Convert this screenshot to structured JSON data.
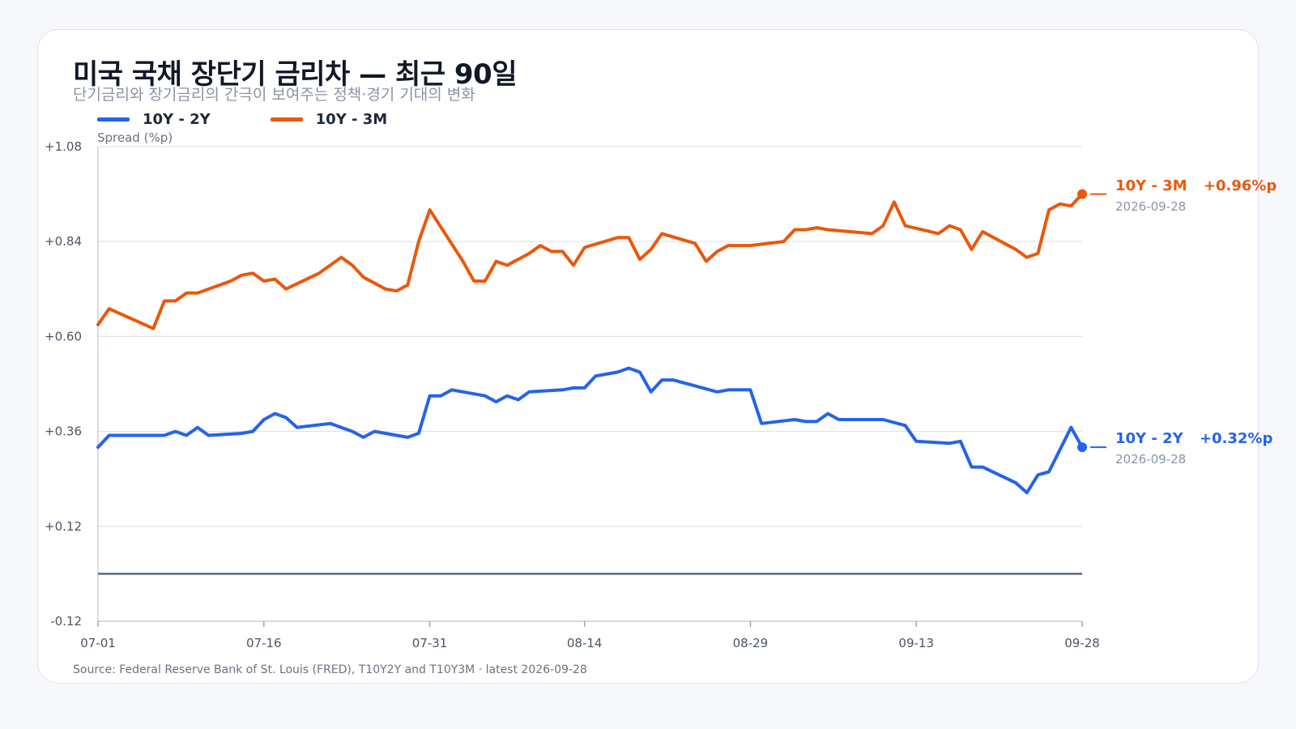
{
  "title": "미국 국채 장단기 금리차 — 최근 90일",
  "subtitle": "단기금리와 장기금리의 간극이 보여주는 정책·경기 기대의 변화",
  "source": "Source: Federal Reserve Bank of St. Louis (FRED), T10Y2Y and T10Y3M · latest 2026-09-28",
  "legend": [
    {
      "label": "10Y - 2Y",
      "color": "#2563eb"
    },
    {
      "label": "10Y - 3M",
      "color": "#ea580c"
    }
  ],
  "end_labels": {
    "s3m": {
      "name": "10Y - 3M",
      "value": "+0.96%p",
      "date": "2026-09-28"
    },
    "s2y": {
      "name": "10Y - 2Y",
      "value": "+0.32%p",
      "date": "2026-09-28"
    }
  },
  "chart_data": {
    "type": "line",
    "ylabel": "Spread (%p)",
    "ylim": [
      -0.12,
      1.08
    ],
    "yticks": [
      1.08,
      0.84,
      0.6,
      0.36,
      0.12,
      -0.12
    ],
    "ytick_labels": [
      "+1.08",
      "+0.84",
      "+0.60",
      "+0.36",
      "+0.12",
      "-0.12"
    ],
    "xlim": [
      "2026-07-01",
      "2026-09-28"
    ],
    "xticks": [
      "2026-07-01",
      "2026-07-16",
      "2026-07-31",
      "2026-08-14",
      "2026-08-29",
      "2026-09-13",
      "2026-09-28"
    ],
    "xtick_labels": [
      "07-01",
      "07-16",
      "07-31",
      "08-14",
      "08-29",
      "09-13",
      "09-28"
    ],
    "reference_line": 0,
    "grid": true,
    "legend_position": "top-left",
    "series": [
      {
        "name": "10Y - 2Y",
        "color": "#2563eb",
        "points": [
          [
            "2026-07-01",
            0.32
          ],
          [
            "2026-07-02",
            0.35
          ],
          [
            "2026-07-06",
            0.35
          ],
          [
            "2026-07-07",
            0.35
          ],
          [
            "2026-07-08",
            0.36
          ],
          [
            "2026-07-09",
            0.35
          ],
          [
            "2026-07-10",
            0.37
          ],
          [
            "2026-07-11",
            0.35
          ],
          [
            "2026-07-14",
            0.355
          ],
          [
            "2026-07-15",
            0.36
          ],
          [
            "2026-07-16",
            0.39
          ],
          [
            "2026-07-17",
            0.405
          ],
          [
            "2026-07-18",
            0.395
          ],
          [
            "2026-07-19",
            0.37
          ],
          [
            "2026-07-22",
            0.38
          ],
          [
            "2026-07-23",
            0.37
          ],
          [
            "2026-07-24",
            0.36
          ],
          [
            "2026-07-25",
            0.345
          ],
          [
            "2026-07-26",
            0.36
          ],
          [
            "2026-07-29",
            0.345
          ],
          [
            "2026-07-30",
            0.355
          ],
          [
            "2026-07-31",
            0.45
          ],
          [
            "2026-08-01",
            0.45
          ],
          [
            "2026-08-02",
            0.465
          ],
          [
            "2026-08-05",
            0.45
          ],
          [
            "2026-08-06",
            0.435
          ],
          [
            "2026-08-07",
            0.45
          ],
          [
            "2026-08-08",
            0.44
          ],
          [
            "2026-08-09",
            0.46
          ],
          [
            "2026-08-12",
            0.465
          ],
          [
            "2026-08-13",
            0.47
          ],
          [
            "2026-08-14",
            0.47
          ],
          [
            "2026-08-15",
            0.5
          ],
          [
            "2026-08-17",
            0.51
          ],
          [
            "2026-08-18",
            0.52
          ],
          [
            "2026-08-19",
            0.51
          ],
          [
            "2026-08-20",
            0.46
          ],
          [
            "2026-08-21",
            0.49
          ],
          [
            "2026-08-22",
            0.49
          ],
          [
            "2026-08-26",
            0.46
          ],
          [
            "2026-08-27",
            0.465
          ],
          [
            "2026-08-28",
            0.465
          ],
          [
            "2026-08-29",
            0.465
          ],
          [
            "2026-08-30",
            0.38
          ],
          [
            "2026-09-02",
            0.39
          ],
          [
            "2026-09-03",
            0.385
          ],
          [
            "2026-09-04",
            0.385
          ],
          [
            "2026-09-05",
            0.405
          ],
          [
            "2026-09-06",
            0.39
          ],
          [
            "2026-09-10",
            0.39
          ],
          [
            "2026-09-12",
            0.375
          ],
          [
            "2026-09-13",
            0.335
          ],
          [
            "2026-09-16",
            0.33
          ],
          [
            "2026-09-17",
            0.335
          ],
          [
            "2026-09-18",
            0.27
          ],
          [
            "2026-09-19",
            0.27
          ],
          [
            "2026-09-22",
            0.23
          ],
          [
            "2026-09-23",
            0.205
          ],
          [
            "2026-09-24",
            0.25
          ],
          [
            "2026-09-25",
            0.258
          ],
          [
            "2026-09-27",
            0.37
          ],
          [
            "2026-09-28",
            0.32
          ]
        ]
      },
      {
        "name": "10Y - 3M",
        "color": "#ea580c",
        "points": [
          [
            "2026-07-01",
            0.63
          ],
          [
            "2026-07-02",
            0.67
          ],
          [
            "2026-07-06",
            0.62
          ],
          [
            "2026-07-07",
            0.69
          ],
          [
            "2026-07-08",
            0.69
          ],
          [
            "2026-07-09",
            0.71
          ],
          [
            "2026-07-10",
            0.71
          ],
          [
            "2026-07-13",
            0.74
          ],
          [
            "2026-07-14",
            0.755
          ],
          [
            "2026-07-15",
            0.76
          ],
          [
            "2026-07-16",
            0.74
          ],
          [
            "2026-07-17",
            0.745
          ],
          [
            "2026-07-18",
            0.72
          ],
          [
            "2026-07-21",
            0.76
          ],
          [
            "2026-07-23",
            0.8
          ],
          [
            "2026-07-24",
            0.78
          ],
          [
            "2026-07-25",
            0.75
          ],
          [
            "2026-07-27",
            0.72
          ],
          [
            "2026-07-28",
            0.715
          ],
          [
            "2026-07-29",
            0.73
          ],
          [
            "2026-07-30",
            0.84
          ],
          [
            "2026-07-31",
            0.92
          ],
          [
            "2026-08-03",
            0.79
          ],
          [
            "2026-08-04",
            0.74
          ],
          [
            "2026-08-05",
            0.74
          ],
          [
            "2026-08-06",
            0.79
          ],
          [
            "2026-08-07",
            0.78
          ],
          [
            "2026-08-09",
            0.81
          ],
          [
            "2026-08-10",
            0.83
          ],
          [
            "2026-08-11",
            0.815
          ],
          [
            "2026-08-12",
            0.815
          ],
          [
            "2026-08-13",
            0.78
          ],
          [
            "2026-08-14",
            0.825
          ],
          [
            "2026-08-17",
            0.85
          ],
          [
            "2026-08-18",
            0.85
          ],
          [
            "2026-08-19",
            0.795
          ],
          [
            "2026-08-20",
            0.82
          ],
          [
            "2026-08-21",
            0.86
          ],
          [
            "2026-08-24",
            0.835
          ],
          [
            "2026-08-25",
            0.79
          ],
          [
            "2026-08-26",
            0.815
          ],
          [
            "2026-08-27",
            0.83
          ],
          [
            "2026-08-29",
            0.83
          ],
          [
            "2026-09-01",
            0.84
          ],
          [
            "2026-09-02",
            0.87
          ],
          [
            "2026-09-03",
            0.87
          ],
          [
            "2026-09-04",
            0.875
          ],
          [
            "2026-09-05",
            0.87
          ],
          [
            "2026-09-09",
            0.86
          ],
          [
            "2026-09-10",
            0.88
          ],
          [
            "2026-09-11",
            0.94
          ],
          [
            "2026-09-12",
            0.88
          ],
          [
            "2026-09-15",
            0.86
          ],
          [
            "2026-09-16",
            0.88
          ],
          [
            "2026-09-17",
            0.87
          ],
          [
            "2026-09-18",
            0.82
          ],
          [
            "2026-09-19",
            0.865
          ],
          [
            "2026-09-22",
            0.82
          ],
          [
            "2026-09-23",
            0.8
          ],
          [
            "2026-09-24",
            0.81
          ],
          [
            "2026-09-25",
            0.92
          ],
          [
            "2026-09-26",
            0.935
          ],
          [
            "2026-09-27",
            0.93
          ],
          [
            "2026-09-28",
            0.96
          ]
        ]
      }
    ]
  }
}
